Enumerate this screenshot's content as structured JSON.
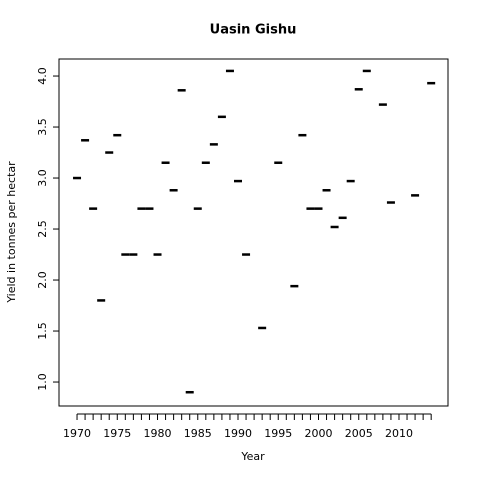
{
  "chart_data": {
    "type": "scatter",
    "title": "Uasin Gishu",
    "xlabel": "Year",
    "ylabel": "Yield in tonnes per hectar",
    "x": [
      1970,
      1971,
      1972,
      1973,
      1974,
      1975,
      1976,
      1977,
      1978,
      1979,
      1980,
      1981,
      1982,
      1983,
      1984,
      1985,
      1986,
      1987,
      1988,
      1989,
      1990,
      1991,
      1993,
      1995,
      1997,
      1998,
      1999,
      2000,
      2001,
      2002,
      2003,
      2004,
      2005,
      2006,
      2008,
      2009,
      2012,
      2014
    ],
    "values": [
      3.0,
      3.37,
      2.7,
      1.8,
      3.25,
      3.42,
      2.25,
      2.25,
      2.7,
      2.7,
      2.25,
      3.15,
      2.88,
      3.86,
      0.9,
      2.7,
      3.15,
      3.33,
      3.6,
      4.05,
      2.97,
      2.25,
      1.53,
      3.15,
      1.94,
      3.42,
      2.7,
      2.7,
      2.88,
      2.52,
      2.61,
      2.97,
      3.87,
      4.05,
      3.72,
      2.76,
      2.83,
      3.93
    ],
    "color": "#000000",
    "xlim": [
      1967.76,
      2016.09
    ],
    "xticks": [
      1970,
      1975,
      1980,
      1985,
      1990,
      1995,
      2000,
      2005,
      2010
    ],
    "xminor_ticks": [
      1971,
      1972,
      1973,
      1974,
      1976,
      1977,
      1978,
      1979,
      1981,
      1982,
      1983,
      1984,
      1986,
      1987,
      1988,
      1989,
      1991,
      1992,
      1993,
      1994,
      1996,
      1997,
      1998,
      1999,
      2001,
      2002,
      2003,
      2004,
      2006,
      2007,
      2008,
      2009,
      2011,
      2012,
      2013,
      2014
    ],
    "ylim": [
      0.765,
      4.167
    ],
    "yticks": [
      {
        "value": 1,
        "label": "1.0"
      },
      {
        "value": 1.5,
        "label": "1.5"
      },
      {
        "value": 2,
        "label": "2.0"
      },
      {
        "value": 2.5,
        "label": "2.5"
      },
      {
        "value": 3,
        "label": "3.0"
      },
      {
        "value": 3.5,
        "label": "3.5"
      },
      {
        "value": 4,
        "label": "4.0"
      }
    ]
  }
}
